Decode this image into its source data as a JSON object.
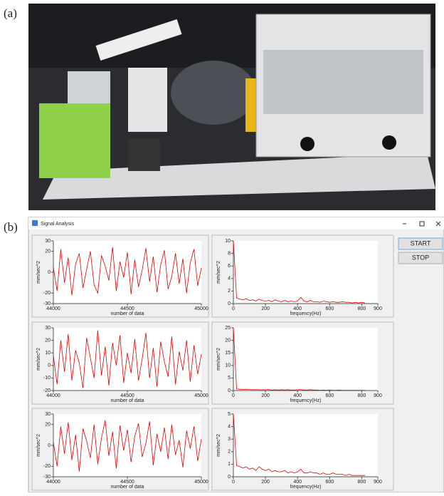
{
  "figure_labels": [
    "(a)",
    "(b)"
  ],
  "window": {
    "title": "Signal Analysis",
    "buttons": [
      "START",
      "STOP"
    ]
  },
  "chart_data": [
    {
      "type": "line",
      "xlabel": "number of data",
      "ylabel": "mm/sec^2",
      "color": "#e00000",
      "xlim": [
        44000,
        45000
      ],
      "xticks": [
        44000,
        44500,
        45000
      ],
      "ylim": [
        -30,
        30
      ],
      "yticks": [
        -30,
        -20,
        0,
        20,
        30
      ],
      "x": [
        44000,
        44025,
        44050,
        44075,
        44100,
        44125,
        44150,
        44175,
        44200,
        44225,
        44250,
        44275,
        44300,
        44325,
        44350,
        44375,
        44400,
        44425,
        44450,
        44475,
        44500,
        44525,
        44550,
        44575,
        44600,
        44625,
        44650,
        44675,
        44700,
        44725,
        44750,
        44775,
        44800,
        44825,
        44850,
        44875,
        44900,
        44925,
        44950,
        44975,
        45000
      ],
      "values": [
        5,
        -18,
        22,
        -10,
        14,
        -22,
        8,
        18,
        -15,
        3,
        20,
        -12,
        -20,
        16,
        6,
        -8,
        24,
        -18,
        10,
        -5,
        19,
        -21,
        12,
        -14,
        2,
        23,
        -9,
        15,
        -19,
        7,
        21,
        -16,
        -4,
        18,
        -11,
        13,
        -20,
        9,
        22,
        -13,
        4
      ]
    },
    {
      "type": "line",
      "xlabel": "frequency(Hz)",
      "ylabel": "mm/sec^2",
      "color": "#e00000",
      "xlim": [
        0,
        900
      ],
      "xticks": [
        0,
        200,
        400,
        600,
        800,
        900
      ],
      "ylim": [
        0,
        10
      ],
      "yticks": [
        0,
        2,
        4,
        6,
        8,
        10
      ],
      "x": [
        0,
        20,
        40,
        60,
        80,
        100,
        120,
        140,
        160,
        180,
        200,
        220,
        240,
        260,
        280,
        300,
        320,
        340,
        360,
        380,
        400,
        420,
        440,
        460,
        480,
        500,
        520,
        540,
        560,
        580,
        600,
        620,
        640,
        660,
        680,
        700,
        720,
        740,
        760,
        780,
        800,
        820
      ],
      "values": [
        10,
        0.9,
        0.7,
        0.6,
        0.8,
        0.5,
        0.6,
        0.4,
        0.7,
        0.5,
        0.4,
        0.5,
        0.3,
        0.6,
        0.4,
        0.3,
        0.5,
        0.3,
        0.4,
        0.3,
        0.4,
        1.0,
        0.4,
        0.3,
        0.5,
        0.3,
        0.3,
        0.2,
        0.4,
        0.3,
        0.2,
        0.3,
        0.2,
        0.2,
        0.3,
        0.2,
        0.2,
        0.1,
        0.2,
        0.1,
        0.2,
        0.1
      ]
    },
    {
      "type": "line",
      "xlabel": "number of data",
      "ylabel": "mm/sec^2",
      "color": "#e00000",
      "xlim": [
        44000,
        45000
      ],
      "xticks": [
        44000,
        44500,
        45000
      ],
      "ylim": [
        -20,
        30
      ],
      "yticks": [
        -20,
        -10,
        0,
        10,
        20,
        30
      ],
      "x": [
        44000,
        44025,
        44050,
        44075,
        44100,
        44125,
        44150,
        44175,
        44200,
        44225,
        44250,
        44275,
        44300,
        44325,
        44350,
        44375,
        44400,
        44425,
        44450,
        44475,
        44500,
        44525,
        44550,
        44575,
        44600,
        44625,
        44650,
        44675,
        44700,
        44725,
        44750,
        44775,
        44800,
        44825,
        44850,
        44875,
        44900,
        44925,
        44950,
        44975,
        45000
      ],
      "values": [
        8,
        -15,
        20,
        -5,
        25,
        -12,
        12,
        2,
        -18,
        22,
        6,
        -10,
        28,
        -8,
        15,
        -16,
        18,
        0,
        24,
        -14,
        10,
        -6,
        21,
        -12,
        5,
        26,
        -10,
        14,
        -17,
        19,
        3,
        -9,
        23,
        -15,
        11,
        -4,
        20,
        -13,
        16,
        -7,
        9
      ]
    },
    {
      "type": "line",
      "xlabel": "frequency(Hz)",
      "ylabel": "mm/sec^2",
      "color": "#e00000",
      "xlim": [
        0,
        900
      ],
      "xticks": [
        0,
        200,
        400,
        600,
        800,
        900
      ],
      "ylim": [
        0,
        25
      ],
      "yticks": [
        0,
        5,
        10,
        15,
        20,
        25
      ],
      "x": [
        0,
        20,
        40,
        60,
        80,
        100,
        120,
        140,
        160,
        180,
        200,
        220,
        240,
        260,
        280,
        300,
        320,
        340,
        360,
        380,
        400,
        420,
        440,
        460,
        480,
        500,
        520,
        540,
        560,
        580,
        600,
        620,
        640,
        660,
        680,
        700,
        720,
        740,
        760,
        780,
        800,
        820
      ],
      "values": [
        25,
        0.6,
        0.5,
        0.4,
        0.5,
        0.4,
        0.3,
        0.4,
        0.3,
        0.3,
        0.3,
        0.4,
        0.2,
        0.3,
        0.2,
        0.3,
        0.2,
        0.3,
        0.2,
        0.2,
        0.3,
        0.4,
        0.2,
        0.2,
        0.3,
        0.2,
        0.2,
        0.1,
        0.2,
        0.1,
        0.2,
        0.1,
        0.1,
        0.2,
        0.1,
        0.1,
        0.1,
        0.1,
        0.1,
        0.1,
        0.1,
        0.1
      ]
    },
    {
      "type": "line",
      "xlabel": "number of data",
      "ylabel": "mm/sec^2",
      "color": "#e00000",
      "xlim": [
        44000,
        45000
      ],
      "xticks": [
        44000,
        44500,
        45000
      ],
      "ylim": [
        -30,
        30
      ],
      "yticks": [
        -30,
        -20,
        0,
        20,
        30
      ],
      "x": [
        44000,
        44025,
        44050,
        44075,
        44100,
        44125,
        44150,
        44175,
        44200,
        44225,
        44250,
        44275,
        44300,
        44325,
        44350,
        44375,
        44400,
        44425,
        44450,
        44475,
        44500,
        44525,
        44550,
        44575,
        44600,
        44625,
        44650,
        44675,
        44700,
        44725,
        44750,
        44775,
        44800,
        44825,
        44850,
        44875,
        44900,
        44925,
        44950,
        44975,
        45000
      ],
      "values": [
        3,
        -20,
        18,
        -8,
        22,
        -14,
        10,
        -25,
        16,
        4,
        -12,
        20,
        -18,
        7,
        24,
        -10,
        13,
        -22,
        19,
        -5,
        15,
        -16,
        9,
        21,
        -11,
        2,
        23,
        -19,
        11,
        -6,
        17,
        -13,
        20,
        -9,
        5,
        -21,
        14,
        -3,
        18,
        -15,
        6
      ]
    },
    {
      "type": "line",
      "xlabel": "frequency(Hz)",
      "ylabel": "mm/sec^2",
      "color": "#e00000",
      "xlim": [
        0,
        900
      ],
      "xticks": [
        0,
        200,
        400,
        600,
        800,
        900
      ],
      "ylim": [
        0,
        5
      ],
      "yticks": [
        0,
        1,
        2,
        3,
        4,
        5
      ],
      "x": [
        0,
        20,
        40,
        60,
        80,
        100,
        120,
        140,
        160,
        180,
        200,
        220,
        240,
        260,
        280,
        300,
        320,
        340,
        360,
        380,
        400,
        420,
        440,
        460,
        480,
        500,
        520,
        540,
        560,
        580,
        600,
        620,
        640,
        660,
        680,
        700,
        720,
        740,
        760,
        780,
        800,
        820
      ],
      "values": [
        5,
        0.9,
        0.8,
        0.7,
        0.8,
        0.6,
        0.7,
        0.5,
        0.8,
        0.6,
        0.5,
        0.6,
        0.4,
        0.5,
        0.4,
        0.4,
        0.5,
        0.3,
        0.4,
        0.3,
        0.4,
        0.6,
        0.3,
        0.3,
        0.4,
        0.3,
        0.3,
        0.2,
        0.3,
        0.2,
        0.2,
        0.3,
        0.2,
        0.2,
        0.2,
        0.1,
        0.2,
        0.1,
        0.1,
        0.1,
        0.1,
        0.1
      ]
    }
  ]
}
